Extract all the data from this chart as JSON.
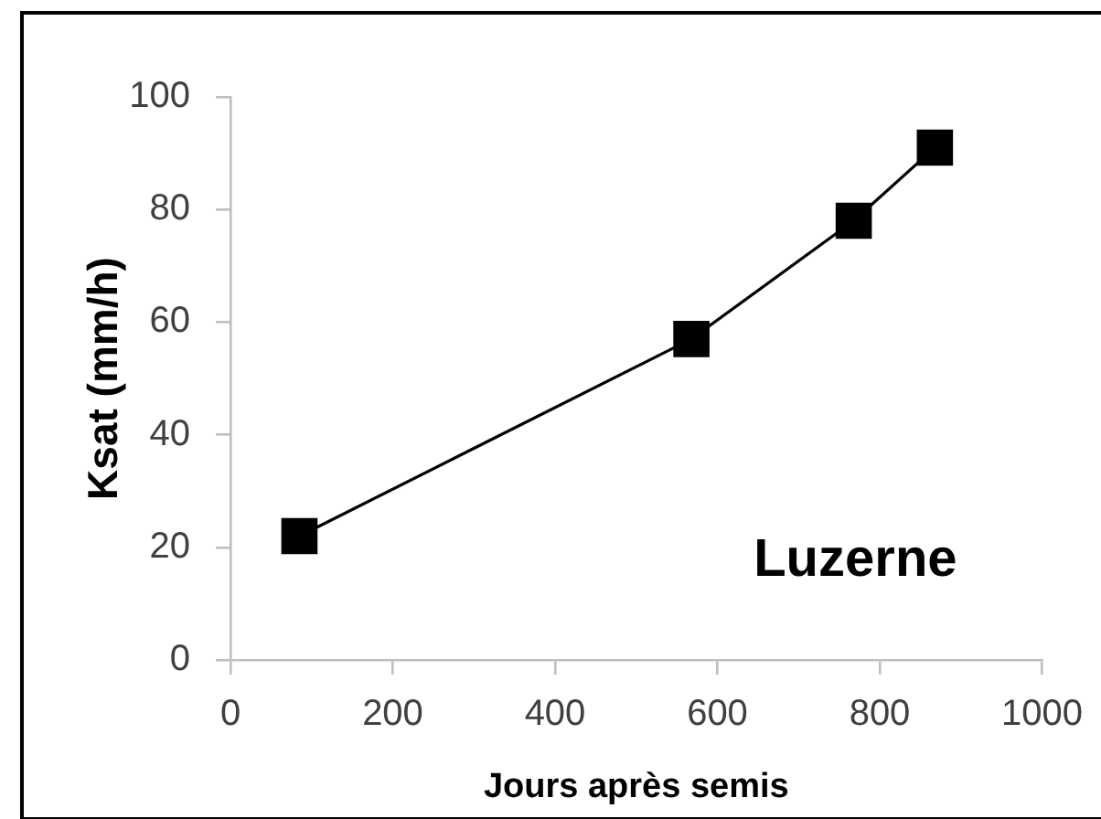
{
  "chart_data": {
    "type": "line",
    "xlabel": "Jours après semis",
    "ylabel": "Ksat (mm/h)",
    "x": [
      85,
      568,
      768,
      868
    ],
    "series": [
      {
        "name": "Luzerne",
        "color": "#000000",
        "values": [
          22,
          57,
          78,
          91
        ]
      }
    ],
    "xlim": [
      0,
      1000
    ],
    "xticks": [
      0,
      200,
      400,
      600,
      800,
      1000
    ],
    "ylim": [
      0,
      100
    ],
    "yticks": [
      0,
      20,
      40,
      60,
      80,
      100
    ],
    "grid": false,
    "legend": false,
    "marker": "square",
    "line_style": "solid"
  }
}
